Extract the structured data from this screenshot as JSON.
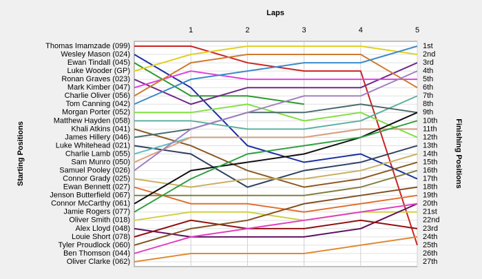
{
  "chart_data": {
    "type": "line",
    "xlabel": "Laps",
    "ylabel": "Starting Positions",
    "y2label": "Finishing Positions",
    "x": [
      0,
      1,
      2,
      3,
      4,
      5
    ],
    "xlim": [
      0,
      5
    ],
    "xticks": [
      1,
      2,
      3,
      4,
      5
    ],
    "ylim": [
      1,
      27
    ],
    "invert_y": true,
    "grid": true,
    "y2ticks": [
      {
        "value": 1,
        "label": "1st"
      },
      {
        "value": 2,
        "label": "2nd"
      },
      {
        "value": 3,
        "label": "3rd"
      },
      {
        "value": 4,
        "label": "4th"
      },
      {
        "value": 5,
        "label": "5th"
      },
      {
        "value": 6,
        "label": "6th"
      },
      {
        "value": 7,
        "label": "7th"
      },
      {
        "value": 8,
        "label": "8th"
      },
      {
        "value": 9,
        "label": "9th"
      },
      {
        "value": 10,
        "label": "10th"
      },
      {
        "value": 11,
        "label": "11th"
      },
      {
        "value": 12,
        "label": "12th"
      },
      {
        "value": 13,
        "label": "13th"
      },
      {
        "value": 14,
        "label": "14th"
      },
      {
        "value": 15,
        "label": "15th"
      },
      {
        "value": 16,
        "label": "16th"
      },
      {
        "value": 17,
        "label": "17th"
      },
      {
        "value": 18,
        "label": "18th"
      },
      {
        "value": 19,
        "label": "19th"
      },
      {
        "value": 20,
        "label": "20th"
      },
      {
        "value": 21,
        "label": "21st"
      },
      {
        "value": 22,
        "label": "22nd"
      },
      {
        "value": 23,
        "label": "23rd"
      },
      {
        "value": 24,
        "label": "24th"
      },
      {
        "value": 25,
        "label": "25th"
      },
      {
        "value": 26,
        "label": "26th"
      },
      {
        "value": 27,
        "label": "27th"
      }
    ],
    "series": [
      {
        "name": "Thomas Imamzade (099)",
        "color": "#cc2222",
        "values": [
          1,
          1,
          3,
          4,
          4,
          25
        ]
      },
      {
        "name": "Wesley Mason (024)",
        "color": "#1a2fa0",
        "values": [
          2,
          6,
          13,
          15,
          14,
          17
        ]
      },
      {
        "name": "Ewan Tindall (045)",
        "color": "#2a9a2a",
        "values": [
          3,
          7,
          7,
          8,
          null,
          null
        ]
      },
      {
        "name": "Luke Wooder (GP)",
        "color": "#e0d020",
        "values": [
          4,
          2,
          1,
          1,
          1,
          2
        ]
      },
      {
        "name": "Ronan Graves (023)",
        "color": "#702a8a",
        "values": [
          5,
          8,
          6,
          6,
          6,
          3
        ]
      },
      {
        "name": "Mark Kimber (047)",
        "color": "#e040e0",
        "values": [
          6,
          4,
          5,
          5,
          5,
          5
        ]
      },
      {
        "name": "Charlie Oliver (056)",
        "color": "#d07a30",
        "values": [
          7,
          3,
          2,
          2,
          2,
          6
        ]
      },
      {
        "name": "Tom Canning (042)",
        "color": "#3a8ac8",
        "values": [
          8,
          5,
          4,
          3,
          3,
          1
        ]
      },
      {
        "name": "Morgan Porter (052)",
        "color": "#80e040",
        "values": [
          9,
          9,
          8,
          10,
          9,
          12
        ]
      },
      {
        "name": "Matthew Hayden (058)",
        "color": "#60b0a0",
        "values": [
          10,
          10,
          11,
          11,
          10,
          7
        ]
      },
      {
        "name": "Khali Atkins (041)",
        "color": "#8a5a20",
        "values": [
          11,
          13,
          16,
          18,
          17,
          15
        ]
      },
      {
        "name": "James Hillery (046)",
        "color": "#4a6a6a",
        "values": [
          12,
          11,
          9,
          9,
          8,
          9
        ]
      },
      {
        "name": "Luke Whitehead (021)",
        "color": "#304060",
        "values": [
          13,
          14,
          18,
          16,
          15,
          13
        ]
      },
      {
        "name": "Charlie Lamb (055)",
        "color": "#60c0c0",
        "values": [
          14,
          12,
          12,
          12,
          11,
          11
        ]
      },
      {
        "name": "Sam Munro (050)",
        "color": "#e0a080",
        "values": [
          15,
          12,
          12,
          12,
          11,
          11
        ]
      },
      {
        "name": "Samuel Pooley (026)",
        "color": "#a080c0",
        "values": [
          16,
          11,
          9,
          7,
          7,
          4
        ]
      },
      {
        "name": "Connor Grady (025)",
        "color": "#c8b060",
        "values": [
          17,
          18,
          17,
          17,
          16,
          14
        ]
      },
      {
        "name": "Ewan Bennett (027)",
        "color": "#e07030",
        "values": [
          18,
          20,
          20,
          21,
          20,
          19
        ]
      },
      {
        "name": "Jenson Butterfield (067)",
        "color": "#808040",
        "values": [
          19,
          19,
          19,
          19,
          18,
          16
        ]
      },
      {
        "name": "Connor McCarthy (061)",
        "color": "#101010",
        "values": [
          20,
          16,
          15,
          14,
          12,
          9
        ]
      },
      {
        "name": "Jamie Rogers (077)",
        "color": "#30a040",
        "values": [
          21,
          17,
          14,
          13,
          12,
          10
        ]
      },
      {
        "name": "Oliver Smith (018)",
        "color": "#d0d040",
        "values": [
          22,
          21,
          21,
          22,
          21,
          21
        ]
      },
      {
        "name": "Alex Lloyd (048)",
        "color": "#601060",
        "values": [
          23,
          24,
          24,
          24,
          23,
          20
        ]
      },
      {
        "name": "Louie Short (078)",
        "color": "#901010",
        "values": [
          24,
          22,
          23,
          23,
          22,
          23
        ]
      },
      {
        "name": "Tyler Proudlock (060)",
        "color": "#805020",
        "values": [
          25,
          23,
          22,
          20,
          19,
          18
        ]
      },
      {
        "name": "Ben Thomson (044)",
        "color": "#e040c0",
        "values": [
          26,
          24,
          23,
          22,
          21,
          20
        ]
      },
      {
        "name": "Oliver Clarke (062)",
        "color": "#e08a30",
        "values": [
          27,
          26,
          26,
          26,
          25,
          24
        ]
      }
    ]
  }
}
